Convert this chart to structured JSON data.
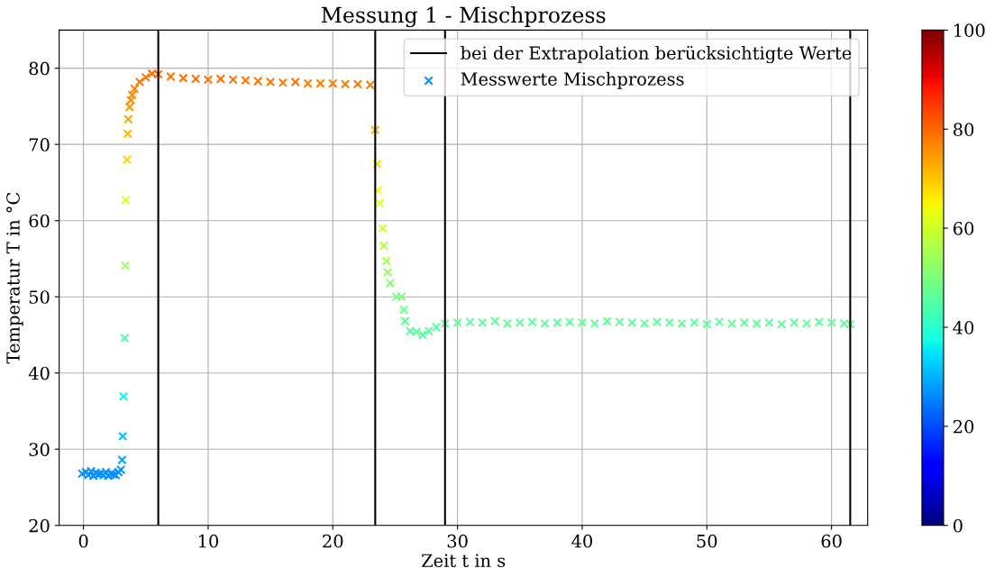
{
  "chart_data": {
    "type": "scatter",
    "title": "Messung 1 - Mischprozess",
    "xlabel": "Zeit t in s",
    "ylabel": "Temperatur T in °C",
    "x": [
      -0.1,
      0.2,
      0.4,
      0.6,
      0.8,
      1.0,
      1.2,
      1.4,
      1.6,
      1.8,
      2.0,
      2.2,
      2.4,
      2.6,
      2.8,
      3.0,
      3.1,
      3.15,
      3.2,
      3.3,
      3.35,
      3.4,
      3.5,
      3.55,
      3.6,
      3.7,
      3.8,
      3.9,
      4.1,
      4.5,
      5.0,
      5.5,
      6.0,
      7,
      8,
      9,
      10,
      11,
      12,
      13,
      14,
      15,
      16,
      17,
      18,
      19,
      20,
      21,
      22,
      23,
      23.4,
      23.55,
      23.6,
      23.75,
      24.0,
      24.1,
      24.3,
      24.4,
      24.6,
      25.1,
      25.5,
      25.7,
      25.8,
      26.2,
      26.7,
      27.2,
      27.7,
      28.3,
      29.0,
      30,
      31,
      32,
      33,
      34,
      35,
      36,
      37,
      38,
      39,
      40,
      41,
      42,
      43,
      44,
      45,
      46,
      47,
      48,
      49,
      50,
      51,
      52,
      53,
      54,
      55,
      56,
      57,
      58,
      59,
      60,
      61,
      61.5
    ],
    "series": [
      {
        "name": "Messwerte Mischprozess",
        "marker": "cross",
        "values": [
          26.8,
          27.0,
          26.6,
          27.1,
          26.5,
          26.9,
          26.7,
          26.8,
          26.6,
          27.0,
          26.5,
          26.8,
          26.7,
          26.6,
          27.0,
          27.3,
          28.6,
          31.7,
          36.9,
          44.6,
          54.1,
          62.7,
          68.0,
          71.4,
          73.3,
          74.9,
          75.8,
          76.5,
          77.3,
          78.2,
          78.8,
          79.3,
          79.2,
          78.9,
          78.7,
          78.6,
          78.5,
          78.6,
          78.5,
          78.4,
          78.3,
          78.2,
          78.1,
          78.2,
          78.0,
          78.0,
          78.0,
          77.9,
          77.9,
          77.8,
          71.9,
          67.4,
          64.0,
          62.3,
          59.0,
          56.7,
          54.7,
          53.2,
          51.8,
          50.0,
          50.0,
          48.3,
          46.8,
          45.5,
          45.4,
          45.0,
          45.5,
          46.0,
          46.5,
          46.6,
          46.7,
          46.6,
          46.8,
          46.5,
          46.6,
          46.7,
          46.5,
          46.6,
          46.7,
          46.6,
          46.5,
          46.8,
          46.7,
          46.6,
          46.5,
          46.7,
          46.6,
          46.5,
          46.6,
          46.4,
          46.7,
          46.5,
          46.6,
          46.5,
          46.6,
          46.4,
          46.6,
          46.5,
          46.7,
          46.6,
          46.5,
          46.4
        ],
        "cvalues": [
          26.8,
          27.0,
          26.6,
          27.1,
          26.5,
          26.9,
          26.7,
          26.8,
          26.6,
          27.0,
          26.5,
          26.8,
          26.7,
          26.6,
          27.0,
          27.3,
          28.6,
          31.7,
          36.9,
          44.6,
          54.1,
          62.7,
          68.0,
          71.4,
          73.3,
          74.9,
          75.8,
          76.5,
          77.3,
          78.2,
          78.8,
          79.3,
          79.2,
          78.9,
          78.7,
          78.6,
          78.5,
          78.6,
          78.5,
          78.4,
          78.3,
          78.2,
          78.1,
          78.2,
          78.0,
          78.0,
          78.0,
          77.9,
          77.9,
          77.8,
          71.9,
          67.4,
          64.0,
          62.3,
          59.0,
          56.7,
          54.7,
          53.2,
          51.8,
          50.0,
          50.0,
          48.3,
          46.8,
          45.5,
          45.4,
          45.0,
          45.5,
          46.0,
          46.5,
          46.6,
          46.7,
          46.6,
          46.8,
          46.5,
          46.6,
          46.7,
          46.5,
          46.6,
          46.7,
          46.6,
          46.5,
          46.8,
          46.7,
          46.6,
          46.5,
          46.7,
          46.6,
          46.5,
          46.6,
          46.4,
          46.7,
          46.5,
          46.6,
          46.5,
          46.6,
          46.4,
          46.6,
          46.5,
          46.7,
          46.6,
          46.5,
          46.4
        ]
      }
    ],
    "ref_lines": [
      {
        "axis": "x",
        "value": 6.0,
        "label": "bei der Extrapolation berücksichtigte Werte",
        "color": "#000000"
      },
      {
        "axis": "x",
        "value": 23.4,
        "color": "#000000"
      },
      {
        "axis": "x",
        "value": 29.0,
        "color": "#000000"
      },
      {
        "axis": "x",
        "value": 61.5,
        "color": "#000000"
      }
    ],
    "xlim": [
      -1.95,
      62.9
    ],
    "ylim": [
      20,
      85
    ],
    "xticks": [
      0,
      10,
      20,
      30,
      40,
      50,
      60
    ],
    "yticks": [
      20,
      30,
      40,
      50,
      60,
      70,
      80
    ],
    "clim": [
      0,
      100
    ],
    "cticks": [
      0,
      20,
      40,
      60,
      80,
      100
    ],
    "grid": true,
    "legend": "top right"
  }
}
